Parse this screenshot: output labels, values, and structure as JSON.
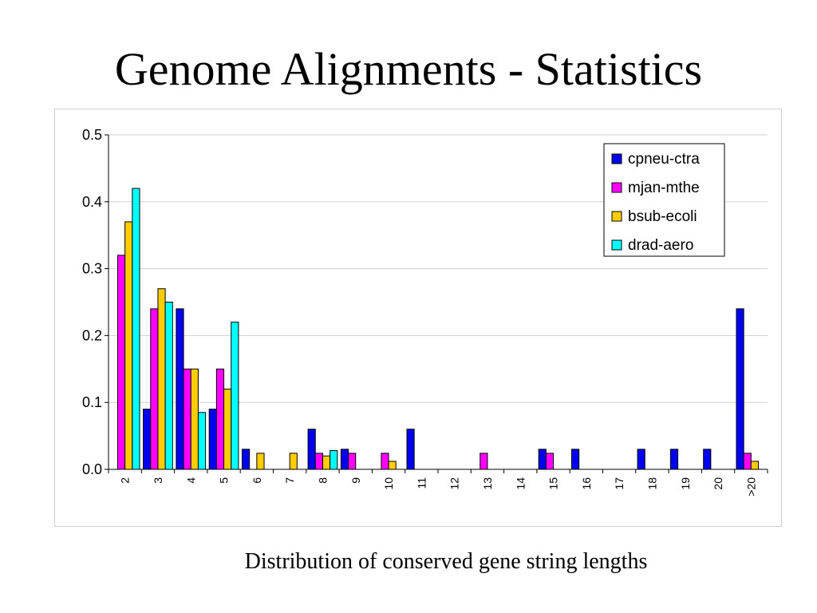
{
  "slide": {
    "title": "Genome Alignments - Statistics",
    "caption": "Distribution of conserved gene string  lengths"
  },
  "chart_data": {
    "type": "bar",
    "title": "",
    "xlabel": "",
    "ylabel": "",
    "ylim": [
      0,
      0.5
    ],
    "yticks": [
      "0.0",
      "0.1",
      "0.2",
      "0.3",
      "0.4",
      "0.5"
    ],
    "grid": true,
    "legend_position": "top-right",
    "categories": [
      "2",
      "3",
      "4",
      "5",
      "6",
      "7",
      "8",
      "9",
      "10",
      "11",
      "12",
      "13",
      "14",
      "15",
      "16",
      "17",
      "18",
      "19",
      "20",
      ">20"
    ],
    "series": [
      {
        "name": "cpneu-ctra",
        "color": "#0000ee",
        "values": [
          0,
          0.09,
          0.24,
          0.09,
          0.03,
          0,
          0.06,
          0.03,
          0,
          0.06,
          0,
          0,
          0,
          0.03,
          0.03,
          0,
          0.03,
          0.03,
          0.03,
          0.24
        ]
      },
      {
        "name": "mjan-mthe",
        "color": "#ff00ff",
        "values": [
          0.32,
          0.24,
          0.15,
          0.15,
          0,
          0,
          0.024,
          0.024,
          0.024,
          0,
          0,
          0.024,
          0,
          0.024,
          0,
          0,
          0,
          0,
          0,
          0.024
        ]
      },
      {
        "name": "bsub-ecoli",
        "color": "#ffcc00",
        "values": [
          0.37,
          0.27,
          0.15,
          0.12,
          0.024,
          0.024,
          0.02,
          0,
          0.012,
          0,
          0,
          0,
          0,
          0,
          0,
          0,
          0,
          0,
          0,
          0.012
        ]
      },
      {
        "name": "drad-aero",
        "color": "#00ffff",
        "values": [
          0.42,
          0.25,
          0.085,
          0.22,
          0,
          0,
          0.028,
          0,
          0,
          0,
          0,
          0,
          0,
          0,
          0,
          0,
          0,
          0,
          0,
          0
        ]
      }
    ]
  }
}
